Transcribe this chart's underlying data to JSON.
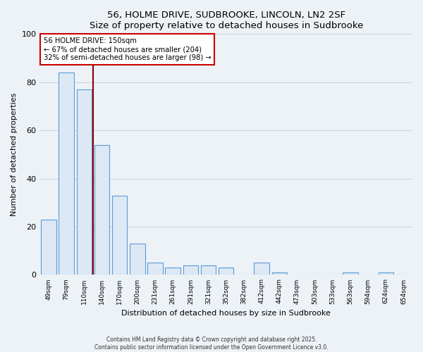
{
  "title": "56, HOLME DRIVE, SUDBROOKE, LINCOLN, LN2 2SF",
  "subtitle": "Size of property relative to detached houses in Sudbrooke",
  "xlabel": "Distribution of detached houses by size in Sudbrooke",
  "ylabel": "Number of detached properties",
  "bar_labels": [
    "49sqm",
    "79sqm",
    "110sqm",
    "140sqm",
    "170sqm",
    "200sqm",
    "231sqm",
    "261sqm",
    "291sqm",
    "321sqm",
    "352sqm",
    "382sqm",
    "412sqm",
    "442sqm",
    "473sqm",
    "503sqm",
    "533sqm",
    "563sqm",
    "594sqm",
    "624sqm",
    "654sqm"
  ],
  "bar_values": [
    23,
    84,
    77,
    54,
    33,
    13,
    5,
    3,
    4,
    4,
    3,
    0,
    5,
    1,
    0,
    0,
    0,
    1,
    0,
    1,
    0
  ],
  "bar_color": "#dce9f5",
  "bar_edgecolor": "#5b9bd5",
  "property_line_x": 2.5,
  "annotation_title": "56 HOLME DRIVE: 150sqm",
  "annotation_line1": "← 67% of detached houses are smaller (204)",
  "annotation_line2": "32% of semi-detached houses are larger (98) →",
  "annotation_box_facecolor": "#ffffff",
  "annotation_border_color": "#cc0000",
  "vline_color": "#8b0000",
  "ylim": [
    0,
    100
  ],
  "grid_color": "#c8d4e0",
  "bg_color": "#edf2f7",
  "plot_bg_color": "#edf2f7",
  "footer1": "Contains HM Land Registry data © Crown copyright and database right 2025.",
  "footer2": "Contains public sector information licensed under the Open Government Licence v3.0."
}
